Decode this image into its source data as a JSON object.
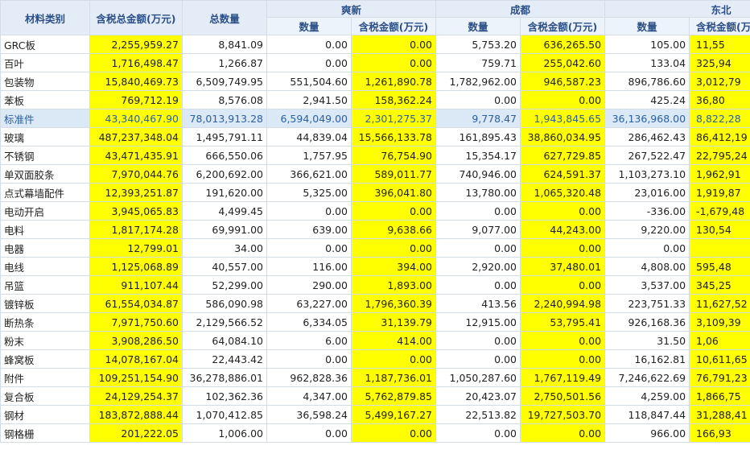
{
  "header": {
    "material_type": "材料类别",
    "total_amount": "含税总金额(万元)",
    "total_qty": "总数量",
    "regions": [
      "爽新",
      "成都",
      "东北"
    ],
    "qty": "数量",
    "amount": "含税金额(万元)"
  },
  "rows": [
    {
      "name": "GRC板",
      "total": "2,255,959.27",
      "qty": "8,841.09",
      "c": [
        "0.00",
        "0.00",
        "5,753.20",
        "636,265.50",
        "105.00",
        "11,55"
      ]
    },
    {
      "name": "百叶",
      "total": "1,716,498.47",
      "qty": "1,266.87",
      "c": [
        "0.00",
        "0.00",
        "759.71",
        "255,042.60",
        "133.04",
        "325,94"
      ]
    },
    {
      "name": "包装物",
      "total": "15,840,469.73",
      "qty": "6,509,749.95",
      "c": [
        "551,504.60",
        "1,261,890.78",
        "1,782,962.00",
        "946,587.23",
        "896,786.60",
        "3,012,79"
      ]
    },
    {
      "name": "苯板",
      "total": "769,712.19",
      "qty": "8,576.08",
      "c": [
        "2,941.50",
        "158,362.24",
        "0.00",
        "0.00",
        "425.24",
        "36,80"
      ]
    },
    {
      "name": "标准件",
      "total": "43,340,467.90",
      "qty": "78,013,913.28",
      "c": [
        "6,594,049.00",
        "2,301,275.37",
        "9,778.47",
        "1,943,845.65",
        "36,136,968.00",
        "8,822,28"
      ],
      "selected": true
    },
    {
      "name": "玻璃",
      "total": "487,237,348.04",
      "qty": "1,495,791.11",
      "c": [
        "44,839.04",
        "15,566,133.78",
        "161,895.43",
        "38,860,034.95",
        "286,462.43",
        "86,412,19"
      ]
    },
    {
      "name": "不锈钢",
      "total": "43,471,435.91",
      "qty": "666,550.06",
      "c": [
        "1,757.95",
        "76,754.90",
        "15,354.17",
        "627,729.85",
        "267,522.47",
        "22,795,24"
      ]
    },
    {
      "name": "单双面胶条",
      "total": "7,970,044.76",
      "qty": "6,200,692.00",
      "c": [
        "366,621.00",
        "589,011.77",
        "740,946.00",
        "624,591.37",
        "1,103,273.10",
        "1,962,91"
      ]
    },
    {
      "name": "点式幕墙配件",
      "total": "12,393,251.87",
      "qty": "191,620.00",
      "c": [
        "5,325.00",
        "396,041.80",
        "13,780.00",
        "1,065,320.48",
        "23,016.00",
        "1,919,87"
      ]
    },
    {
      "name": "电动开启",
      "total": "3,945,065.83",
      "qty": "4,499.45",
      "c": [
        "0.00",
        "0.00",
        "0.00",
        "0.00",
        "-336.00",
        "-1,679,48"
      ]
    },
    {
      "name": "电料",
      "total": "1,817,174.28",
      "qty": "69,991.00",
      "c": [
        "639.00",
        "9,638.66",
        "9,077.00",
        "44,243.00",
        "9,220.00",
        "130,54"
      ]
    },
    {
      "name": "电器",
      "total": "12,799.01",
      "qty": "34.00",
      "c": [
        "0.00",
        "0.00",
        "0.00",
        "0.00",
        "0.00",
        ""
      ]
    },
    {
      "name": "电线",
      "total": "1,125,068.89",
      "qty": "40,557.00",
      "c": [
        "116.00",
        "394.00",
        "2,920.00",
        "37,480.01",
        "4,808.00",
        "595,48"
      ]
    },
    {
      "name": "吊篮",
      "total": "911,107.44",
      "qty": "52,299.00",
      "c": [
        "290.00",
        "1,893.00",
        "0.00",
        "0.00",
        "3,537.00",
        "345,25"
      ]
    },
    {
      "name": "镀锌板",
      "total": "61,554,034.87",
      "qty": "586,090.98",
      "c": [
        "63,227.00",
        "1,796,360.39",
        "413.56",
        "2,240,994.98",
        "223,751.33",
        "11,627,52"
      ]
    },
    {
      "name": "断热条",
      "total": "7,971,750.60",
      "qty": "2,129,566.52",
      "c": [
        "6,334.05",
        "31,139.79",
        "12,915.00",
        "53,795.41",
        "926,168.36",
        "3,109,39"
      ]
    },
    {
      "name": "粉末",
      "total": "3,908,286.50",
      "qty": "64,084.10",
      "c": [
        "6.00",
        "414.00",
        "0.00",
        "0.00",
        "31.50",
        "1,06"
      ]
    },
    {
      "name": "蜂窝板",
      "total": "14,078,167.04",
      "qty": "22,443.42",
      "c": [
        "0.00",
        "0.00",
        "0.00",
        "0.00",
        "16,162.81",
        "10,611,65"
      ]
    },
    {
      "name": "附件",
      "total": "109,251,154.90",
      "qty": "36,278,886.01",
      "c": [
        "962,828.36",
        "1,187,736.01",
        "1,050,287.60",
        "1,767,119.49",
        "7,246,622.69",
        "76,791,23"
      ]
    },
    {
      "name": "复合板",
      "total": "24,129,254.37",
      "qty": "102,362.36",
      "c": [
        "4,347.00",
        "5,762,879.85",
        "20,423.07",
        "2,750,501.56",
        "4,259.00",
        "1,866,75"
      ]
    },
    {
      "name": "钢材",
      "total": "183,872,888.44",
      "qty": "1,070,412.85",
      "c": [
        "36,598.24",
        "5,499,167.27",
        "22,513.82",
        "19,727,503.70",
        "118,847.44",
        "31,288,41"
      ]
    },
    {
      "name": "钢格栅",
      "total": "201,222.05",
      "qty": "1,006.00",
      "c": [
        "0.00",
        "0.00",
        "0.00",
        "0.00",
        "966.00",
        "166,93"
      ]
    }
  ]
}
